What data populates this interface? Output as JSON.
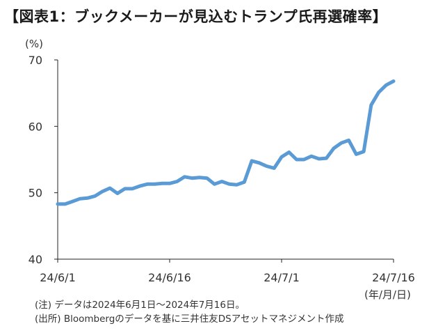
{
  "title": "【図表1：ブックメーカーが見込むトランプ氏再選確率】",
  "y_unit": "(%)",
  "x_unit": "(年/月/日)",
  "notes": [
    "(注) データは2024年6月1日～2024年7月16日。",
    "(出所) Bloombergのデータを基に三井住友DSアセットマネジメント作成"
  ],
  "colors": {
    "line": "#5b9bd5",
    "axis": "#222222"
  },
  "chart_data": {
    "type": "line",
    "title": "【図表1：ブックメーカーが見込むトランプ氏再選確率】",
    "xlabel": "",
    "ylabel": "(%)",
    "ylim": [
      40,
      70
    ],
    "yticks": [
      40,
      50,
      60,
      70
    ],
    "xticks": [
      "24/6/1",
      "24/6/16",
      "24/7/1",
      "24/7/16"
    ],
    "x_start": "2024-06-01",
    "x_end": "2024-07-16",
    "grid": false,
    "series": [
      {
        "name": "",
        "x": [
          "2024-06-01",
          "2024-06-02",
          "2024-06-03",
          "2024-06-04",
          "2024-06-05",
          "2024-06-06",
          "2024-06-07",
          "2024-06-08",
          "2024-06-09",
          "2024-06-10",
          "2024-06-11",
          "2024-06-12",
          "2024-06-13",
          "2024-06-14",
          "2024-06-15",
          "2024-06-16",
          "2024-06-17",
          "2024-06-18",
          "2024-06-19",
          "2024-06-20",
          "2024-06-21",
          "2024-06-22",
          "2024-06-23",
          "2024-06-24",
          "2024-06-25",
          "2024-06-26",
          "2024-06-27",
          "2024-06-28",
          "2024-06-29",
          "2024-06-30",
          "2024-07-01",
          "2024-07-02",
          "2024-07-03",
          "2024-07-04",
          "2024-07-05",
          "2024-07-06",
          "2024-07-07",
          "2024-07-08",
          "2024-07-09",
          "2024-07-10",
          "2024-07-11",
          "2024-07-12",
          "2024-07-13",
          "2024-07-14",
          "2024-07-15",
          "2024-07-16"
        ],
        "values": [
          48.3,
          48.3,
          48.7,
          49.1,
          49.2,
          49.5,
          50.2,
          50.7,
          49.9,
          50.6,
          50.6,
          51.0,
          51.3,
          51.3,
          51.4,
          51.4,
          51.7,
          52.4,
          52.2,
          52.3,
          52.2,
          51.3,
          51.7,
          51.3,
          51.2,
          51.6,
          54.8,
          54.5,
          54.0,
          53.7,
          55.4,
          56.1,
          55.0,
          55.0,
          55.5,
          55.1,
          55.2,
          56.7,
          57.5,
          57.9,
          55.8,
          56.2,
          63.2,
          65.1,
          66.2,
          66.8
        ]
      }
    ]
  }
}
